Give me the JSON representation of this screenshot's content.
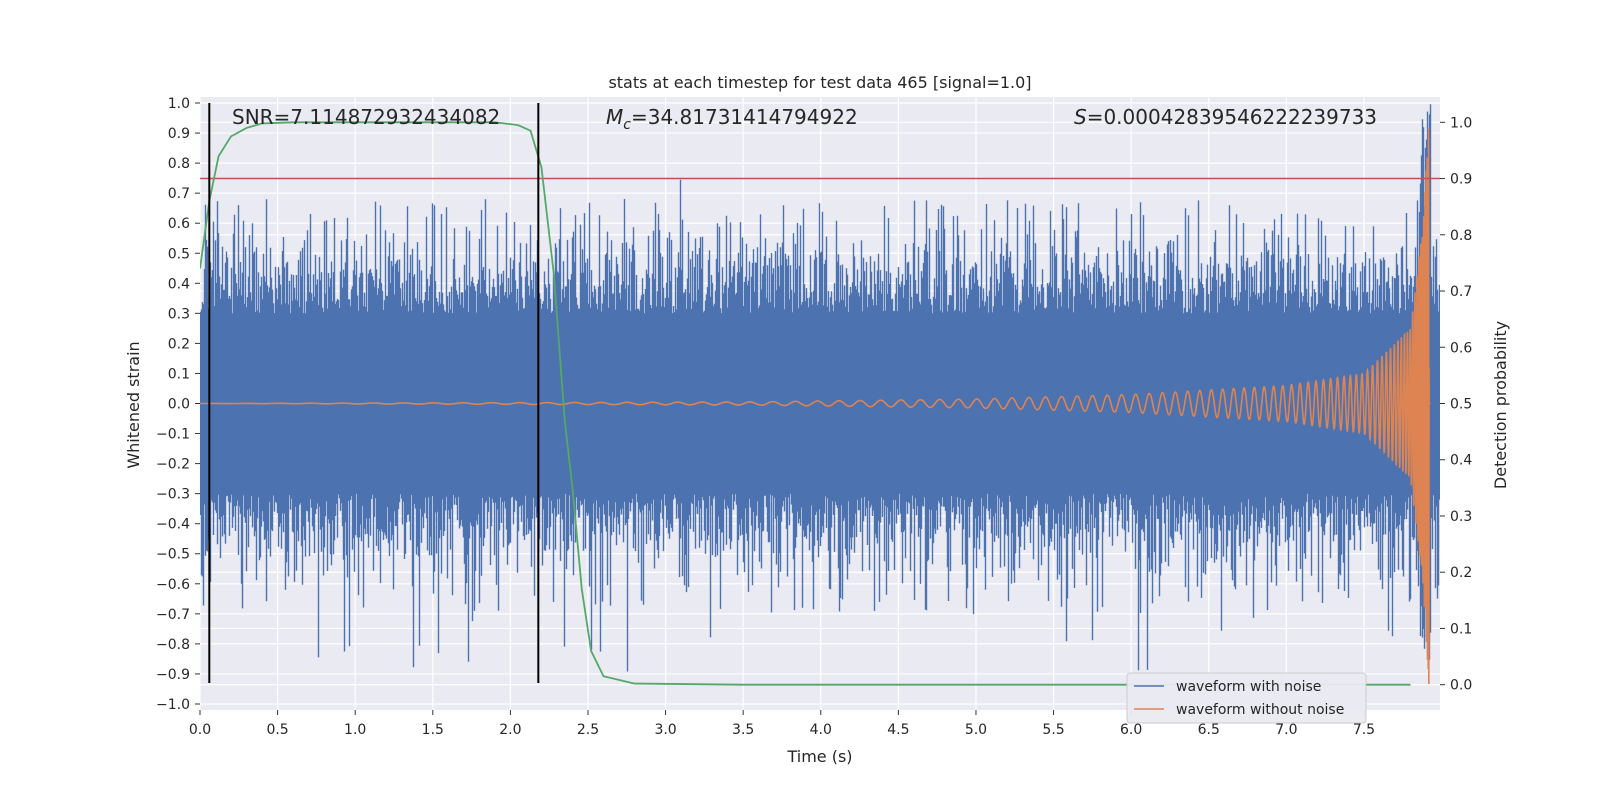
{
  "chart_data": {
    "type": "line",
    "title": "stats at each timestep for test data 465 [signal=1.0]",
    "xlabel": "Time (s)",
    "ylabel": "Whitened strain",
    "y2label": "Detection probability",
    "xlim": [
      0.0,
      7.99
    ],
    "ylim": [
      -1.02,
      1.02
    ],
    "y2lim": [
      -0.045,
      1.045
    ],
    "x_ticks": [
      0.0,
      0.5,
      1.0,
      1.5,
      2.0,
      2.5,
      3.0,
      3.5,
      4.0,
      4.5,
      5.0,
      5.5,
      6.0,
      6.5,
      7.0,
      7.5
    ],
    "x_tick_labels": [
      "0.0",
      "0.5",
      "1.0",
      "1.5",
      "2.0",
      "2.5",
      "3.0",
      "3.5",
      "4.0",
      "4.5",
      "5.0",
      "5.5",
      "6.0",
      "6.5",
      "7.0",
      "7.5"
    ],
    "y_ticks": [
      1.0,
      0.9,
      0.8,
      0.7,
      0.6,
      0.5,
      0.4,
      0.3,
      0.2,
      0.1,
      0.0,
      -0.1,
      -0.2,
      -0.3,
      -0.4,
      -0.5,
      -0.6,
      -0.7,
      -0.8,
      -0.9,
      -1.0
    ],
    "y_tick_labels": [
      "1.0",
      "0.9",
      "0.8",
      "0.7",
      "0.6",
      "0.5",
      "0.4",
      "0.3",
      "0.2",
      "0.1",
      "0.0",
      "−0.1",
      "−0.2",
      "−0.3",
      "−0.4",
      "−0.5",
      "−0.6",
      "−0.7",
      "−0.8",
      "−0.9",
      "−1.0"
    ],
    "y2_ticks": [
      1.0,
      0.9,
      0.8,
      0.7,
      0.6,
      0.5,
      0.4,
      0.3,
      0.2,
      0.1,
      0.0
    ],
    "y2_tick_labels": [
      "1.0",
      "0.9",
      "0.8",
      "0.7",
      "0.6",
      "0.5",
      "0.4",
      "0.3",
      "0.2",
      "0.1",
      "0.0"
    ],
    "grid": true,
    "legend_placement": "lower-right",
    "series": [
      {
        "name": "waveform with noise",
        "color": "#4c72b0",
        "axis": "left",
        "sample_rate_hz": 2048,
        "typical_amplitude": 0.4,
        "extreme_amplitude": 0.85
      },
      {
        "name": "waveform without noise",
        "color": "#dd8452",
        "axis": "left",
        "description_points_x": [
          0.0,
          3.5,
          5.0,
          6.0,
          7.0,
          7.5,
          7.8,
          7.88,
          7.92
        ],
        "amplitude_envelope": [
          0.0,
          0.005,
          0.015,
          0.03,
          0.06,
          0.1,
          0.25,
          0.6,
          0.95
        ]
      },
      {
        "name": "",
        "color": "#55a868",
        "axis": "right",
        "x": [
          0.0,
          0.06,
          0.12,
          0.2,
          0.3,
          0.4,
          0.6,
          1.0,
          1.5,
          1.9,
          2.05,
          2.13,
          2.2,
          2.28,
          2.35,
          2.4,
          2.46,
          2.52,
          2.6,
          2.8,
          3.5,
          5.0,
          6.5,
          7.8
        ],
        "y": [
          0.74,
          0.86,
          0.94,
          0.975,
          0.99,
          0.998,
          1.0,
          1.0,
          1.0,
          1.0,
          0.995,
          0.985,
          0.92,
          0.73,
          0.47,
          0.35,
          0.17,
          0.06,
          0.015,
          0.002,
          0.0,
          0.0,
          0.0,
          0.0
        ]
      }
    ],
    "threshold_line": {
      "axis": "right",
      "value": 0.9,
      "color": "#c44e52"
    },
    "vertical_markers": [
      {
        "x": 0.06,
        "color": "#000000",
        "ymin": -0.93,
        "ymax": 1.0
      },
      {
        "x": 2.18,
        "color": "#000000",
        "ymin": -0.93,
        "ymax": 1.0
      }
    ],
    "annotations": {
      "snr": "SNR=7.114872932434082",
      "mc_symbol": "M",
      "mc_subscript": "c",
      "mc_value": "=34.81731414794922",
      "s_symbol": "S",
      "s_value": "=0.00042839546222239733"
    },
    "legend": [
      {
        "label": "waveform with noise",
        "color": "#4c72b0"
      },
      {
        "label": "waveform without noise",
        "color": "#dd8452"
      }
    ]
  }
}
